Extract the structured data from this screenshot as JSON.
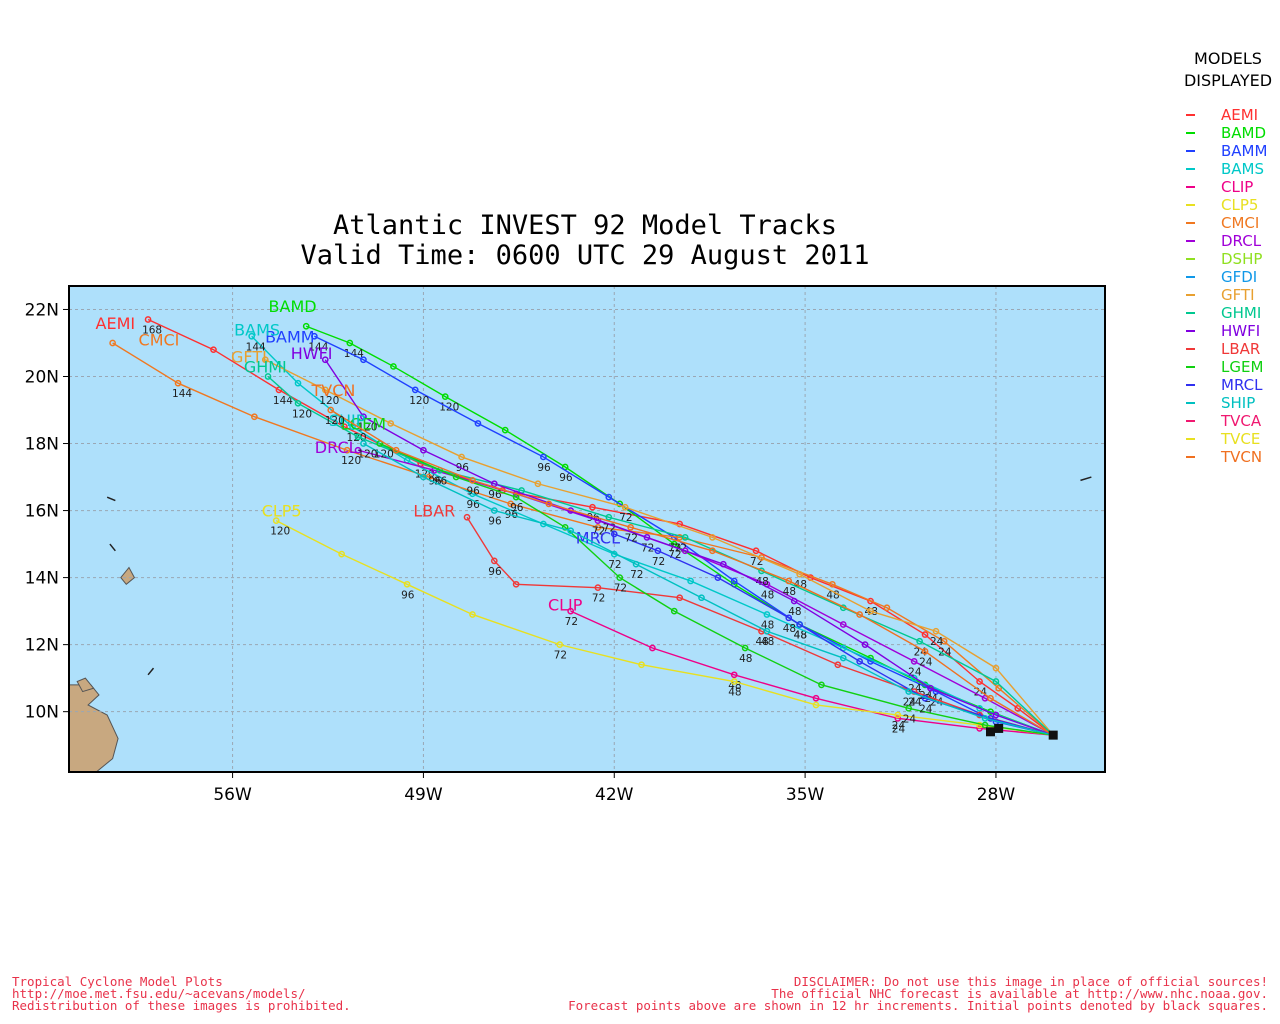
{
  "title": "Atlantic INVEST 92 Model Tracks",
  "subtitle": "Valid Time: 0600 UTC 29 August 2011",
  "legend": {
    "heading_line1": "MODELS",
    "heading_line2": "DISPLAYED",
    "items": [
      {
        "name": "AEMI",
        "color": "#ff3030"
      },
      {
        "name": "BAMD",
        "color": "#00dd00"
      },
      {
        "name": "BAMM",
        "color": "#2040ff"
      },
      {
        "name": "BAMS",
        "color": "#00c8c8"
      },
      {
        "name": "CLIP",
        "color": "#ee0088"
      },
      {
        "name": "CLP5",
        "color": "#e8e020"
      },
      {
        "name": "CMCI",
        "color": "#f07820"
      },
      {
        "name": "DRCL",
        "color": "#a000d8"
      },
      {
        "name": "DSHP",
        "color": "#90e020"
      },
      {
        "name": "GFDI",
        "color": "#1098e8"
      },
      {
        "name": "GFTI",
        "color": "#e8a030"
      },
      {
        "name": "GHMI",
        "color": "#00c890"
      },
      {
        "name": "HWFI",
        "color": "#8000e0"
      },
      {
        "name": "LBAR",
        "color": "#f03838"
      },
      {
        "name": "LGEM",
        "color": "#10d010"
      },
      {
        "name": "MRCL",
        "color": "#3030f0"
      },
      {
        "name": "SHIP",
        "color": "#00c0c0"
      },
      {
        "name": "TVCA",
        "color": "#f01870"
      },
      {
        "name": "TVCE",
        "color": "#e8e020"
      },
      {
        "name": "TVCN",
        "color": "#f07020"
      }
    ]
  },
  "footer_left": [
    "Tropical Cyclone Model Plots",
    "http://moe.met.fsu.edu/~acevans/models/",
    "Redistribution of these images is prohibited."
  ],
  "footer_right": [
    "DISCLAIMER: Do not use this image in place of official sources!",
    "The official NHC forecast is available at http://www.nhc.noaa.gov.",
    "Forecast points above are shown in 12 hr increments. Initial points denoted by black squares."
  ],
  "chart_data": {
    "type": "line",
    "title": "Atlantic INVEST 92 Model Tracks",
    "subtitle": "Valid Time: 0600 UTC 29 August 2011",
    "x_axis": {
      "range_lon": [
        -62.0,
        -24.0
      ],
      "ticks": [
        -56,
        -49,
        -42,
        -35,
        -28
      ],
      "tick_labels": [
        "56W",
        "49W",
        "42W",
        "35W",
        "28W"
      ]
    },
    "y_axis": {
      "range_lat": [
        8.2,
        22.7
      ],
      "ticks": [
        10,
        12,
        14,
        16,
        18,
        20,
        22
      ],
      "tick_labels": [
        "10N",
        "12N",
        "14N",
        "16N",
        "18N",
        "20N",
        "22N"
      ]
    },
    "grid": true,
    "legend_position": "right",
    "initial_points": [
      [
        -25.9,
        9.3
      ],
      [
        -28.2,
        9.4
      ],
      [
        -27.9,
        9.5
      ]
    ],
    "series": [
      {
        "name": "AEMI",
        "color": "#ff3030",
        "label_at": [
          -60.3,
          21.6
        ],
        "points": [
          [
            -25.9,
            9.3
          ],
          [
            -27.2,
            10.1
          ],
          [
            -28.6,
            10.9
          ],
          [
            -30.6,
            12.3
          ],
          [
            -32.6,
            13.3
          ],
          [
            -34.8,
            14.0
          ],
          [
            -36.8,
            14.8
          ],
          [
            -39.6,
            15.6
          ],
          [
            -42.8,
            16.1
          ],
          [
            -46.1,
            16.6
          ],
          [
            -49.1,
            17.4
          ],
          [
            -51.9,
            18.5
          ],
          [
            -54.3,
            19.6
          ],
          [
            -56.7,
            20.8
          ],
          [
            -59.1,
            21.7
          ]
        ]
      },
      {
        "name": "BAMD",
        "color": "#00dd00",
        "label_at": [
          -53.8,
          22.1
        ],
        "points": [
          [
            -25.9,
            9.3
          ],
          [
            -28.2,
            10.0
          ],
          [
            -30.6,
            10.8
          ],
          [
            -32.6,
            11.6
          ],
          [
            -35.2,
            12.6
          ],
          [
            -37.6,
            13.8
          ],
          [
            -39.8,
            15.0
          ],
          [
            -41.8,
            16.2
          ],
          [
            -43.8,
            17.3
          ],
          [
            -46.0,
            18.4
          ],
          [
            -48.2,
            19.4
          ],
          [
            -50.1,
            20.3
          ],
          [
            -51.7,
            21.0
          ],
          [
            -53.3,
            21.5
          ]
        ]
      },
      {
        "name": "BAMM",
        "color": "#2040ff",
        "label_at": [
          -53.9,
          21.2
        ],
        "points": [
          [
            -25.9,
            9.3
          ],
          [
            -28.0,
            9.7
          ],
          [
            -30.2,
            10.6
          ],
          [
            -32.6,
            11.5
          ],
          [
            -35.2,
            12.6
          ],
          [
            -37.6,
            13.9
          ],
          [
            -39.8,
            15.2
          ],
          [
            -42.2,
            16.4
          ],
          [
            -44.6,
            17.6
          ],
          [
            -47.0,
            18.6
          ],
          [
            -49.3,
            19.6
          ],
          [
            -51.2,
            20.5
          ],
          [
            -53.0,
            21.2
          ]
        ]
      },
      {
        "name": "BAMS",
        "color": "#00c8c8",
        "label_at": [
          -55.1,
          21.4
        ],
        "points": [
          [
            -25.9,
            9.3
          ],
          [
            -28.6,
            10.1
          ],
          [
            -31.0,
            11.0
          ],
          [
            -33.6,
            11.9
          ],
          [
            -36.4,
            12.9
          ],
          [
            -39.2,
            13.9
          ],
          [
            -42.0,
            14.7
          ],
          [
            -44.6,
            15.6
          ],
          [
            -47.2,
            16.5
          ],
          [
            -49.6,
            17.5
          ],
          [
            -51.6,
            18.5
          ],
          [
            -53.6,
            19.8
          ],
          [
            -55.3,
            21.2
          ]
        ]
      },
      {
        "name": "CLIP",
        "color": "#ee0088",
        "label_at": [
          -43.8,
          13.2
        ],
        "points": [
          [
            -25.9,
            9.3
          ],
          [
            -28.6,
            9.5
          ],
          [
            -31.6,
            9.8
          ],
          [
            -34.6,
            10.4
          ],
          [
            -37.6,
            11.1
          ],
          [
            -40.6,
            11.9
          ],
          [
            -43.6,
            13.0
          ]
        ]
      },
      {
        "name": "CLP5",
        "color": "#e8e020",
        "label_at": [
          -54.2,
          16.0
        ],
        "points": [
          [
            -25.9,
            9.3
          ],
          [
            -28.6,
            9.6
          ],
          [
            -31.6,
            9.9
          ],
          [
            -34.6,
            10.2
          ],
          [
            -37.6,
            10.9
          ],
          [
            -41.0,
            11.4
          ],
          [
            -44.0,
            12.0
          ],
          [
            -47.2,
            12.9
          ],
          [
            -49.6,
            13.8
          ],
          [
            -52.0,
            14.7
          ],
          [
            -54.4,
            15.7
          ]
        ]
      },
      {
        "name": "CMCI",
        "color": "#f07820",
        "label_at": [
          -58.7,
          21.1
        ],
        "points": [
          [
            -25.9,
            9.3
          ],
          [
            -27.9,
            10.7
          ],
          [
            -29.9,
            12.1
          ],
          [
            -32.0,
            13.1
          ],
          [
            -34.0,
            13.8
          ],
          [
            -36.6,
            14.6
          ],
          [
            -39.6,
            15.2
          ],
          [
            -42.6,
            15.5
          ],
          [
            -45.8,
            16.2
          ],
          [
            -48.8,
            17.0
          ],
          [
            -51.8,
            17.8
          ],
          [
            -55.2,
            18.8
          ],
          [
            -58.0,
            19.8
          ],
          [
            -60.4,
            21.0
          ]
        ]
      },
      {
        "name": "DRCL",
        "color": "#a000d8",
        "label_at": [
          -52.2,
          17.9
        ],
        "points": [
          [
            -25.9,
            9.3
          ],
          [
            -28.4,
            10.4
          ],
          [
            -31.0,
            11.5
          ],
          [
            -33.6,
            12.6
          ],
          [
            -36.4,
            13.8
          ],
          [
            -39.4,
            14.8
          ],
          [
            -42.6,
            15.7
          ],
          [
            -45.6,
            16.5
          ],
          [
            -48.6,
            17.2
          ],
          [
            -51.4,
            17.8
          ]
        ]
      },
      {
        "name": "GFTI",
        "color": "#e8a030",
        "label_at": [
          -55.4,
          20.6
        ],
        "points": [
          [
            -25.9,
            9.3
          ],
          [
            -28.0,
            11.3
          ],
          [
            -30.2,
            12.4
          ],
          [
            -32.6,
            13.0
          ],
          [
            -35.2,
            14.1
          ],
          [
            -38.4,
            15.2
          ],
          [
            -41.6,
            16.1
          ],
          [
            -44.8,
            16.8
          ],
          [
            -47.6,
            17.6
          ],
          [
            -50.2,
            18.6
          ],
          [
            -52.6,
            19.6
          ],
          [
            -54.8,
            20.5
          ]
        ]
      },
      {
        "name": "GHMI",
        "color": "#00c890",
        "label_at": [
          -54.8,
          20.3
        ],
        "points": [
          [
            -25.9,
            9.3
          ],
          [
            -28.0,
            10.9
          ],
          [
            -30.8,
            12.1
          ],
          [
            -33.6,
            13.1
          ],
          [
            -36.6,
            14.2
          ],
          [
            -39.4,
            15.2
          ],
          [
            -42.2,
            15.8
          ],
          [
            -45.4,
            16.6
          ],
          [
            -48.4,
            17.2
          ],
          [
            -51.4,
            18.2
          ],
          [
            -53.6,
            19.2
          ],
          [
            -54.7,
            20.0
          ]
        ]
      },
      {
        "name": "HWFI",
        "color": "#8000e0",
        "label_at": [
          -53.1,
          20.7
        ],
        "points": [
          [
            -25.9,
            9.3
          ],
          [
            -28.0,
            9.9
          ],
          [
            -30.4,
            10.7
          ],
          [
            -32.8,
            12.0
          ],
          [
            -35.4,
            13.3
          ],
          [
            -38.0,
            14.4
          ],
          [
            -40.8,
            15.2
          ],
          [
            -43.6,
            16.0
          ],
          [
            -46.4,
            16.8
          ],
          [
            -49.0,
            17.8
          ],
          [
            -51.2,
            18.8
          ],
          [
            -52.6,
            20.5
          ]
        ]
      },
      {
        "name": "LBAR",
        "color": "#f03838",
        "label_at": [
          -48.6,
          16.0
        ],
        "points": [
          [
            -25.9,
            9.3
          ],
          [
            -28.6,
            9.9
          ],
          [
            -31.0,
            10.6
          ],
          [
            -33.8,
            11.4
          ],
          [
            -36.6,
            12.4
          ],
          [
            -39.6,
            13.4
          ],
          [
            -42.6,
            13.7
          ],
          [
            -45.6,
            13.8
          ],
          [
            -46.4,
            14.5
          ],
          [
            -47.4,
            15.8
          ]
        ]
      },
      {
        "name": "LGEM",
        "color": "#10d010",
        "label_at": [
          -51.2,
          18.6
        ],
        "points": [
          [
            -25.9,
            9.3
          ],
          [
            -28.4,
            9.6
          ],
          [
            -31.2,
            10.1
          ],
          [
            -34.4,
            10.8
          ],
          [
            -37.2,
            11.9
          ],
          [
            -39.8,
            13.0
          ],
          [
            -41.8,
            14.0
          ],
          [
            -43.8,
            15.5
          ],
          [
            -45.6,
            16.4
          ],
          [
            -47.8,
            17.0
          ],
          [
            -50.6,
            18.0
          ]
        ]
      },
      {
        "name": "MRCL",
        "color": "#3030f0",
        "label_at": [
          -42.6,
          15.2
        ],
        "points": [
          [
            -25.9,
            9.3
          ],
          [
            -28.2,
            9.8
          ],
          [
            -30.6,
            10.4
          ],
          [
            -33.0,
            11.5
          ],
          [
            -35.6,
            12.8
          ],
          [
            -38.2,
            14.0
          ],
          [
            -40.4,
            14.8
          ],
          [
            -42.0,
            15.3
          ]
        ]
      },
      {
        "name": "SHIP",
        "color": "#00c0c0",
        "label_at": [
          -51.8,
          18.7
        ],
        "points": [
          [
            -25.9,
            9.3
          ],
          [
            -28.4,
            9.8
          ],
          [
            -31.2,
            10.6
          ],
          [
            -33.6,
            11.6
          ],
          [
            -36.4,
            12.4
          ],
          [
            -38.8,
            13.4
          ],
          [
            -41.2,
            14.4
          ],
          [
            -43.6,
            15.4
          ],
          [
            -46.4,
            16.0
          ],
          [
            -49.0,
            17.0
          ],
          [
            -51.2,
            18.0
          ]
        ]
      },
      {
        "name": "TVCN",
        "color": "#f07020",
        "label_at": [
          -52.3,
          19.6
        ],
        "points": [
          [
            -25.9,
            9.3
          ],
          [
            -28.2,
            10.4
          ],
          [
            -30.6,
            11.8
          ],
          [
            -33.0,
            12.9
          ],
          [
            -35.6,
            13.9
          ],
          [
            -38.4,
            14.8
          ],
          [
            -41.4,
            15.5
          ],
          [
            -44.4,
            16.2
          ],
          [
            -47.2,
            16.9
          ],
          [
            -50.0,
            17.8
          ],
          [
            -52.4,
            19.0
          ]
        ]
      }
    ]
  }
}
